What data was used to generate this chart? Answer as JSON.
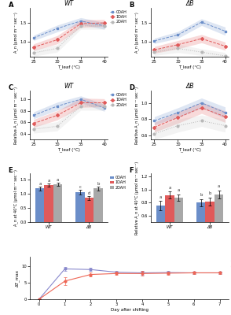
{
  "temps": [
    25,
    30,
    35,
    40
  ],
  "panel_A": {
    "title": "WT",
    "ylabel": "A_n (μmol m⁻² sec⁻¹)",
    "xlabel": "T_leaf (°C)",
    "ylim": [
      0.6,
      1.9
    ],
    "lines": {
      "0DAH": {
        "mean": [
          1.1,
          1.35,
          1.55,
          1.42
        ],
        "sem": [
          0.07,
          0.09,
          0.09,
          0.09
        ]
      },
      "1DAH": {
        "mean": [
          0.85,
          1.05,
          1.48,
          1.5
        ],
        "sem": [
          0.09,
          0.11,
          0.1,
          0.09
        ]
      },
      "2DAH": {
        "mean": [
          0.7,
          0.82,
          1.42,
          1.42
        ],
        "sem": [
          0.09,
          0.1,
          0.09,
          0.09
        ]
      }
    }
  },
  "panel_B": {
    "title": "ΔB",
    "ylabel": "A_n (μmol m⁻² sec⁻¹)",
    "xlabel": "T_leaf (°C)",
    "ylim": [
      0.6,
      1.9
    ],
    "lines": {
      "0DAH": {
        "mean": [
          1.02,
          1.18,
          1.52,
          1.28
        ],
        "sem": [
          0.07,
          0.09,
          0.09,
          0.11
        ]
      },
      "1DAH": {
        "mean": [
          0.78,
          0.92,
          1.08,
          0.88
        ],
        "sem": [
          0.09,
          0.11,
          0.11,
          0.11
        ]
      },
      "2DAH": {
        "mean": [
          0.72,
          0.82,
          0.72,
          0.62
        ],
        "sem": [
          0.09,
          0.11,
          0.09,
          0.09
        ]
      }
    }
  },
  "panel_C": {
    "title": "WT",
    "ylabel": "Relative A_n (μmol m⁻² sec⁻¹)",
    "xlabel": "T_leaf (°C)",
    "ylim": [
      0.3,
      1.15
    ],
    "lines": {
      "0DAH": {
        "mean": [
          0.72,
          0.88,
          1.0,
          0.85
        ],
        "sem": [
          0.06,
          0.07,
          0.06,
          0.06
        ]
      },
      "1DAH": {
        "mean": [
          0.58,
          0.72,
          0.94,
          0.94
        ],
        "sem": [
          0.07,
          0.08,
          0.08,
          0.07
        ]
      },
      "2DAH": {
        "mean": [
          0.48,
          0.53,
          0.88,
          0.88
        ],
        "sem": [
          0.07,
          0.08,
          0.07,
          0.07
        ]
      }
    }
  },
  "panel_D": {
    "title": "ΔB",
    "ylabel": "Relative A_n (μmol m⁻² sec⁻¹)",
    "xlabel": "T_leaf (°C)",
    "ylim": [
      0.55,
      1.15
    ],
    "lines": {
      "0DAH": {
        "mean": [
          0.78,
          0.88,
          1.0,
          0.88
        ],
        "sem": [
          0.05,
          0.06,
          0.06,
          0.07
        ]
      },
      "1DAH": {
        "mean": [
          0.7,
          0.82,
          0.94,
          0.83
        ],
        "sem": [
          0.06,
          0.07,
          0.07,
          0.07
        ]
      },
      "2DAH": {
        "mean": [
          0.62,
          0.72,
          0.78,
          0.72
        ],
        "sem": [
          0.07,
          0.08,
          0.07,
          0.08
        ]
      }
    }
  },
  "panel_E": {
    "ylabel": "A_n at 40°C (μmol m⁻² sec⁻¹)",
    "groups": [
      "WT",
      "ΔB"
    ],
    "ylim": [
      0,
      1.7
    ],
    "bars": {
      "0DAH": [
        1.18,
        1.05
      ],
      "1DAH": [
        1.3,
        0.85
      ],
      "2DAH": [
        1.33,
        1.18
      ]
    },
    "errors": {
      "0DAH": [
        0.07,
        0.07
      ],
      "1DAH": [
        0.06,
        0.07
      ],
      "2DAH": [
        0.06,
        0.07
      ]
    },
    "letters_WT": {
      "0DAH": "a",
      "1DAH": "a",
      "2DAH": "a"
    },
    "letters_dB": {
      "0DAH": "c",
      "1DAH": "d",
      "2DAH": "b"
    }
  },
  "panel_F": {
    "ylabel": "Relative A_n at 40°C (μmol m⁻² sec⁻¹)",
    "groups": [
      "WT",
      "ΔB"
    ],
    "ylim": [
      0.5,
      1.25
    ],
    "bars": {
      "0DAH": [
        0.76,
        0.8
      ],
      "1DAH": [
        0.92,
        0.82
      ],
      "2DAH": [
        0.88,
        0.93
      ]
    },
    "errors": {
      "0DAH": [
        0.07,
        0.06
      ],
      "1DAH": [
        0.05,
        0.06
      ],
      "2DAH": [
        0.05,
        0.06
      ]
    },
    "letters_WT": {
      "0DAH": "a",
      "1DAH": "a",
      "2DAH": "a"
    },
    "letters_dB": {
      "0DAH": "b",
      "1DAH": "b",
      "2DAH": "a"
    }
  },
  "panel_G": {
    "xlabel": "Day after shifting",
    "ylabel": "ΔT_max",
    "ylim": [
      0,
      13
    ],
    "days": [
      0,
      1,
      2,
      3,
      4,
      5,
      6,
      7
    ],
    "WT": {
      "mean": [
        0,
        9.2,
        9.0,
        8.2,
        8.0,
        8.1,
        8.0,
        8.0
      ],
      "sem": [
        0,
        0.7,
        0.5,
        0.4,
        0.5,
        0.4,
        0.3,
        0.3
      ]
    },
    "dB": {
      "mean": [
        0,
        5.5,
        7.5,
        7.8,
        7.8,
        7.9,
        8.0,
        8.0
      ],
      "sem": [
        0,
        1.1,
        0.7,
        0.5,
        0.7,
        0.5,
        0.4,
        0.4
      ]
    }
  },
  "colors": {
    "0DAH": "#6b8ec9",
    "1DAH": "#e05a5a",
    "2DAH": "#b8b8b8",
    "WT_line": "#8888cc",
    "dB_line": "#ee6655"
  }
}
